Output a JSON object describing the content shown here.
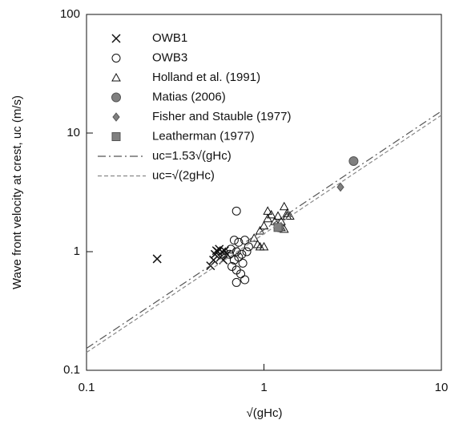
{
  "chart_data": {
    "type": "scatter",
    "xlabel": "√(gHc)",
    "ylabel": "Wave front velocity at crest, uc (m/s)",
    "xscale": "log",
    "yscale": "log",
    "xlim": [
      0.1,
      10
    ],
    "ylim": [
      0.1,
      100
    ],
    "xticks": [
      0.1,
      1,
      10
    ],
    "yticks": [
      0.1,
      1,
      10,
      100
    ],
    "legend": "upper left",
    "series": [
      {
        "name": "OWB1",
        "marker": "x",
        "color": "#111111",
        "x": [
          0.25,
          0.5,
          0.52,
          0.53,
          0.55,
          0.56,
          0.57,
          0.58,
          0.6,
          0.62,
          0.54,
          0.59
        ],
        "values": [
          0.87,
          0.76,
          0.85,
          0.95,
          1.0,
          1.05,
          0.9,
          1.0,
          1.02,
          0.95,
          1.02,
          0.85
        ]
      },
      {
        "name": "OWB3",
        "marker": "open-circle",
        "color": "#111111",
        "x": [
          0.7,
          0.68,
          0.72,
          0.78,
          0.65,
          0.7,
          0.75,
          0.8,
          0.68,
          0.72,
          0.66,
          0.7,
          0.74,
          0.7,
          0.78,
          0.76,
          0.82,
          0.64
        ],
        "values": [
          2.2,
          1.25,
          1.2,
          1.25,
          1.05,
          1.0,
          0.95,
          1.0,
          0.85,
          0.9,
          0.75,
          0.7,
          0.65,
          0.55,
          0.58,
          0.8,
          1.1,
          0.95
        ]
      },
      {
        "name": "Holland et al. (1991)",
        "marker": "open-triangle",
        "color": "#111111",
        "x": [
          0.88,
          0.92,
          0.95,
          1.0,
          0.95,
          1.0,
          1.05,
          1.05,
          1.1,
          1.15,
          1.2,
          1.25,
          1.3,
          1.35,
          1.35,
          1.25,
          1.3,
          1.4
        ],
        "values": [
          1.3,
          1.15,
          1.1,
          1.1,
          1.5,
          1.65,
          1.9,
          2.2,
          2.05,
          1.8,
          2.0,
          1.8,
          2.4,
          2.1,
          2.0,
          1.6,
          1.55,
          2.0
        ]
      },
      {
        "name": "Matias (2006)",
        "marker": "filled-circle",
        "color": "#808080",
        "x": [
          1.22,
          3.2
        ],
        "values": [
          1.6,
          5.8
        ]
      },
      {
        "name": "Fisher and Stauble (1977)",
        "marker": "filled-diamond",
        "color": "#808080",
        "x": [
          2.7
        ],
        "values": [
          3.5
        ]
      },
      {
        "name": "Leatherman (1977)",
        "marker": "filled-square",
        "color": "#808080",
        "x": [
          1.2
        ],
        "values": [
          1.6
        ]
      },
      {
        "name": "uc=1.53√(gHc)",
        "marker": "line",
        "dash": "10 4 2 4",
        "color": "#555555",
        "x": [
          0.1,
          10
        ],
        "values": [
          0.153,
          15.3
        ]
      },
      {
        "name": "uc=√(2gHc)",
        "marker": "line",
        "dash": "5 3",
        "color": "#888888",
        "x": [
          0.1,
          10
        ],
        "values": [
          0.1414,
          14.14
        ]
      }
    ]
  }
}
